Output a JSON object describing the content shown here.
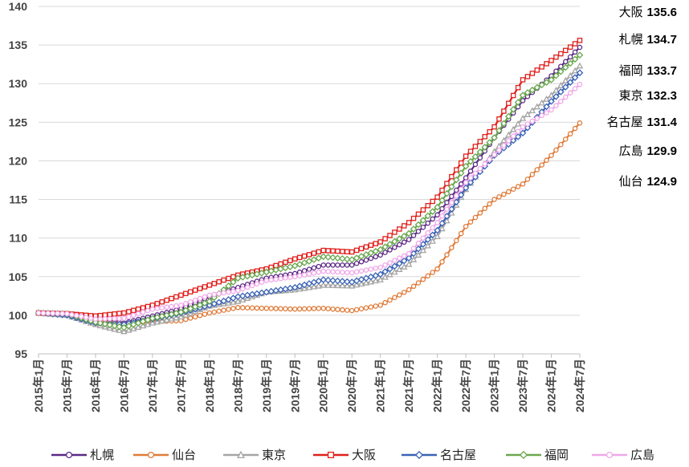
{
  "chart_data": {
    "type": "line",
    "ylim": [
      95,
      140
    ],
    "yticks": [
      95,
      100,
      105,
      110,
      115,
      120,
      125,
      130,
      135,
      140
    ],
    "categories": [
      "2015年1月",
      "2015年7月",
      "2016年1月",
      "2016年7月",
      "2017年1月",
      "2017年7月",
      "2018年1月",
      "2018年7月",
      "2019年1月",
      "2019年7月",
      "2020年1月",
      "2020年7月",
      "2021年1月",
      "2021年7月",
      "2022年1月",
      "2022年7月",
      "2023年1月",
      "2023年7月",
      "2024年1月",
      "2024年7月"
    ],
    "grid": true,
    "legend": "bottom",
    "series": [
      {
        "name": "札幌",
        "color": "#5b2a86",
        "marker": "circle",
        "values": [
          100.3,
          100.0,
          99.6,
          99.0,
          99.9,
          100.8,
          102.4,
          103.6,
          104.8,
          105.4,
          106.5,
          106.5,
          107.8,
          109.8,
          113.0,
          117.8,
          123.0,
          127.8,
          131.0,
          134.7
        ]
      },
      {
        "name": "仙台",
        "color": "#e07b39",
        "marker": "circle",
        "values": [
          100.3,
          100.2,
          99.3,
          98.8,
          99.2,
          99.3,
          100.3,
          101.0,
          100.9,
          100.8,
          100.9,
          100.6,
          101.3,
          103.3,
          106.0,
          111.5,
          115.0,
          117.0,
          120.7,
          124.9
        ]
      },
      {
        "name": "東京",
        "color": "#a5a5a5",
        "marker": "triangle",
        "values": [
          100.3,
          100.0,
          98.8,
          97.9,
          99.0,
          99.8,
          101.2,
          101.8,
          103.0,
          103.3,
          103.9,
          103.8,
          104.6,
          106.6,
          110.2,
          116.3,
          121.2,
          125.5,
          128.5,
          132.3
        ]
      },
      {
        "name": "大阪",
        "color": "#e0201c",
        "marker": "square",
        "values": [
          100.3,
          100.2,
          99.9,
          100.3,
          101.3,
          102.6,
          103.9,
          105.2,
          106.0,
          107.3,
          108.4,
          108.2,
          109.5,
          112.0,
          115.3,
          120.6,
          124.4,
          130.5,
          133.0,
          135.6
        ]
      },
      {
        "name": "名古屋",
        "color": "#3a63b5",
        "marker": "diamond",
        "values": [
          100.3,
          100.0,
          99.0,
          98.8,
          99.5,
          100.3,
          101.3,
          102.4,
          103.0,
          103.6,
          104.6,
          104.3,
          105.3,
          107.4,
          111.0,
          116.5,
          120.7,
          123.6,
          127.7,
          131.4
        ]
      },
      {
        "name": "福岡",
        "color": "#6aa84f",
        "marker": "diamond",
        "values": [
          100.3,
          100.2,
          99.1,
          98.4,
          99.6,
          100.4,
          101.8,
          104.8,
          105.6,
          106.4,
          107.6,
          107.2,
          108.5,
          110.6,
          114.0,
          119.3,
          123.0,
          128.5,
          130.5,
          133.7
        ]
      },
      {
        "name": "広島",
        "color": "#f0a8e8",
        "marker": "circle",
        "values": [
          100.3,
          100.2,
          99.5,
          99.6,
          100.8,
          101.3,
          102.6,
          103.2,
          104.5,
          105.0,
          105.7,
          105.5,
          106.2,
          108.0,
          112.0,
          117.2,
          120.8,
          124.4,
          126.6,
          129.9
        ]
      }
    ],
    "end_labels": [
      {
        "name": "大阪",
        "value": "135.6"
      },
      {
        "name": "札幌",
        "value": "134.7"
      },
      {
        "name": "福岡",
        "value": "133.7"
      },
      {
        "name": "東京",
        "value": "132.3"
      },
      {
        "name": "名古屋",
        "value": "131.4"
      },
      {
        "name": "広島",
        "value": "129.9"
      },
      {
        "name": "仙台",
        "value": "124.9"
      }
    ]
  }
}
